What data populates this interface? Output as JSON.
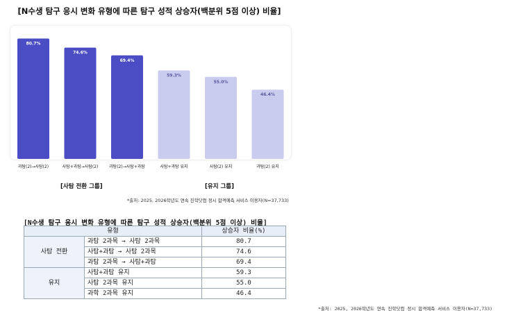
{
  "chart_title": "[N수생 탐구 응시 변화 유형에 따른 탐구 성적 상승자(백분위 5점 이상) 비율]",
  "chart_data": {
    "type": "bar",
    "categories": [
      "과탐(2)→사탐(2)",
      "사탐+과탐→사탐(2)",
      "과탐(2)→사탐+과탐",
      "사탐+과탐 유지",
      "사탐(2) 유지",
      "과탐(2) 유지"
    ],
    "values": [
      80.7,
      74.6,
      69.4,
      59.3,
      55.0,
      46.4
    ],
    "value_labels": [
      "80.7%",
      "74.6%",
      "69.4%",
      "59.3%",
      "55.0%",
      "46.4%"
    ],
    "colors": [
      "#4a4dc4",
      "#4a4dc4",
      "#4a4dc4",
      "#c9cbef",
      "#c9cbef",
      "#c9cbef"
    ],
    "label_colors": [
      "#ffffff",
      "#ffffff",
      "#ffffff",
      "#5a5aa0",
      "#5a5aa0",
      "#5a5aa0"
    ],
    "ylim": [
      0,
      100
    ],
    "grid": false
  },
  "groups": {
    "switch_label": "[사탐 전환 그룹]",
    "keep_label": "[유지 그룹]"
  },
  "source_chart": "*출처: 2025, 2026학년도 연속 진학닷컴 정시 합격예측 서비스 이용자(N=37,733)",
  "table": {
    "title": "[N수생 탐구 응시 변화 유형에 따른 탐구 성적 상승자(백분위 5점 이상) 비율]",
    "header_type": "유형",
    "header_value": "상승자 비율(%)",
    "sections": [
      {
        "name": "사탐 전환",
        "rows": [
          {
            "type": "과탐 2과목 → 사탐 2과목",
            "value": "80.7"
          },
          {
            "type": "사탐+과탐 → 사탐 2과목",
            "value": "74.6"
          },
          {
            "type": "과탐 2과목 → 사탐+과탐",
            "value": "69.4"
          }
        ]
      },
      {
        "name": "유지",
        "rows": [
          {
            "type": "사탐+과탐 유지",
            "value": "59.3"
          },
          {
            "type": "사탐 2과목 유지",
            "value": "55.0"
          },
          {
            "type": "과학 2과목 유지",
            "value": "46.4"
          }
        ]
      }
    ]
  },
  "source_table": "*출처: 2025, 2026학년도 연속 진학닷컴 정시 합격예측 서비스 이용자(N=37,733)"
}
